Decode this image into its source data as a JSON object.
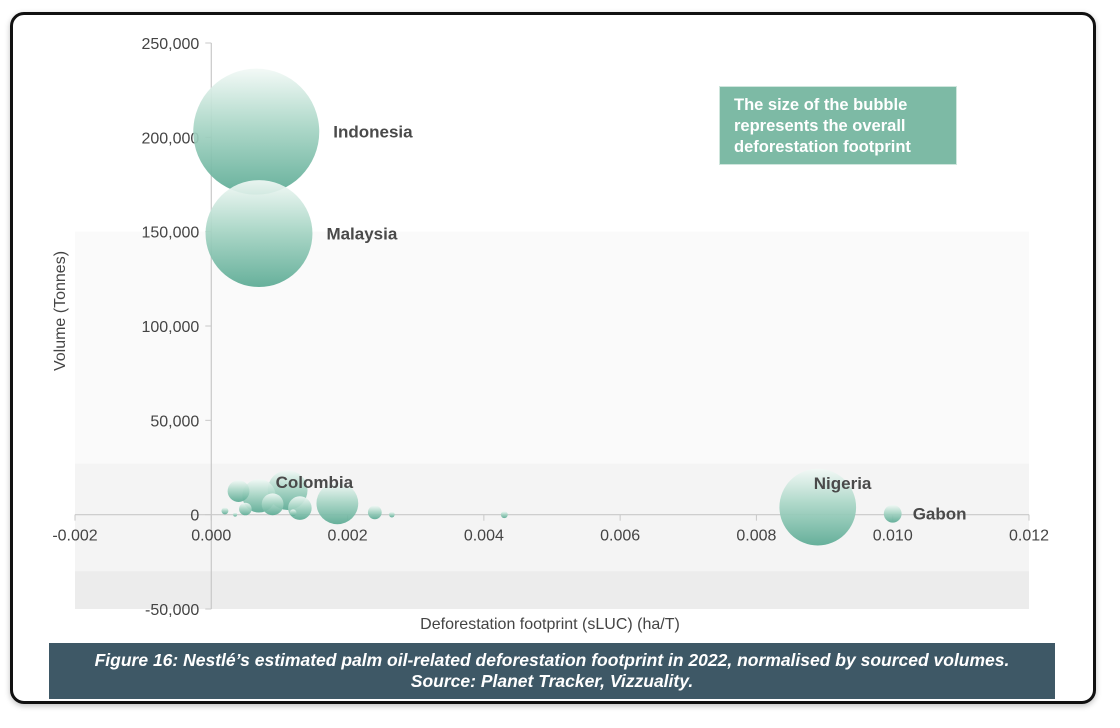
{
  "chart_data": {
    "type": "scatter",
    "xlabel": "Deforestation footprint (sLUC) (ha/T)",
    "ylabel": "Volume (Tonnes)",
    "xlim": [
      -0.002,
      0.012
    ],
    "ylim": [
      -50000,
      250000
    ],
    "x_ticks": [
      "-0.002",
      "0.000",
      "0.002",
      "0.004",
      "0.006",
      "0.008",
      "0.010",
      "0.012"
    ],
    "x_tick_values": [
      -0.002,
      0.0,
      0.002,
      0.004,
      0.006,
      0.008,
      0.01,
      0.012
    ],
    "y_ticks": [
      "-50,000",
      "0",
      "50,000",
      "100,000",
      "150,000",
      "200,000",
      "250,000"
    ],
    "y_tick_values": [
      -50000,
      0,
      50000,
      100000,
      150000,
      200000,
      250000
    ],
    "bubble_size_note": "The size of the bubble represents the overall deforestation footprint",
    "points": [
      {
        "label": "Indonesia",
        "x": 0.00066,
        "y": 203000,
        "size": 100
      },
      {
        "label": "Malaysia",
        "x": 0.0007,
        "y": 149000,
        "size": 72
      },
      {
        "label": "Nigeria",
        "x": 0.0089,
        "y": 4000,
        "size": 37
      },
      {
        "label": "Gabon",
        "x": 0.01,
        "y": 500,
        "size": 2
      },
      {
        "label": "Colombia",
        "x": 0.00112,
        "y": 13000,
        "size": 10
      },
      {
        "label": "",
        "x": 0.00185,
        "y": 6000,
        "size": 11
      },
      {
        "label": "",
        "x": 0.0007,
        "y": 10000,
        "size": 7
      },
      {
        "label": "",
        "x": 0.0004,
        "y": 12500,
        "size": 3
      },
      {
        "label": "",
        "x": 0.0013,
        "y": 3500,
        "size": 3.5
      },
      {
        "label": "",
        "x": 0.0009,
        "y": 5500,
        "size": 3
      },
      {
        "label": "",
        "x": 0.0005,
        "y": 3000,
        "size": 1
      },
      {
        "label": "",
        "x": 0.0024,
        "y": 1200,
        "size": 1.2
      },
      {
        "label": "",
        "x": 0.0043,
        "y": 0,
        "size": 0.3
      },
      {
        "label": "",
        "x": 0.0002,
        "y": 2000,
        "size": 0.3
      },
      {
        "label": "",
        "x": 0.0012,
        "y": 1000,
        "size": 0.3
      },
      {
        "label": "",
        "x": 0.00265,
        "y": 0,
        "size": 0.2
      },
      {
        "label": "",
        "x": 0.00035,
        "y": 0,
        "size": 0.1
      }
    ]
  },
  "note": {
    "text": "The size of the bubble\nrepresents the overall\ndeforestation footprint"
  },
  "caption": {
    "line1": "Figure 16: Nestlé’s estimated palm oil-related deforestation footprint in 2022, normalised by sourced volumes.",
    "line2": "Source: Planet Tracker, Vizzuality."
  }
}
